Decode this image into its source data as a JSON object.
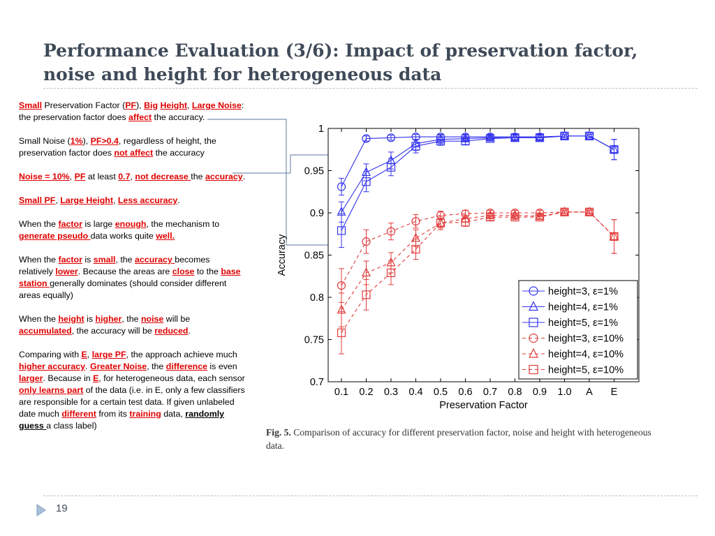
{
  "slide": {
    "title": "Performance Evaluation (3/6): Impact of preservation factor, noise and height for heterogeneous data",
    "page_number": "19",
    "caption_label": "Fig. 5.",
    "caption_text": " Comparison of accuracy for different preservation factor, noise and height with heterogeneous data."
  },
  "colors": {
    "title": "#3f4a58",
    "keyword": "#e00000",
    "blue_series": "#3333ee",
    "red_series": "#e23b3b"
  },
  "icons": {
    "bullet": "triangle-bullet-icon"
  },
  "text": [
    [
      {
        "t": "Small",
        "k": 1
      },
      {
        "t": " Preservation Factor ("
      },
      {
        "t": "PF",
        "k": 1
      },
      {
        "t": "), "
      },
      {
        "t": "Big",
        "k": 1
      },
      {
        "t": " "
      },
      {
        "t": "Height",
        "k": 1
      },
      {
        "t": ", "
      },
      {
        "t": "Large Noise",
        "k": 1
      },
      {
        "t": ": the preservation factor does "
      },
      {
        "t": "affect",
        "k": 1
      },
      {
        "t": " the accuracy."
      }
    ],
    [
      {
        "t": "Small Noise ("
      },
      {
        "t": "1%",
        "k": 1
      },
      {
        "t": "), "
      },
      {
        "t": "PF>0.4",
        "k": 1
      },
      {
        "t": ", regardless of height, the preservation factor does "
      },
      {
        "t": "not affect",
        "k": 1
      },
      {
        "t": " the accuracy"
      }
    ],
    [
      {
        "t": "Noise = 10%",
        "k": 1
      },
      {
        "t": ", "
      },
      {
        "t": "PF",
        "k": 1
      },
      {
        "t": " at least "
      },
      {
        "t": "0.7",
        "k": 1
      },
      {
        "t": ", "
      },
      {
        "t": "not decrease ",
        "k": 1
      },
      {
        "t": "the "
      },
      {
        "t": "accuracy",
        "k": 1
      },
      {
        "t": "."
      }
    ],
    [
      {
        "t": "Small PF",
        "k": 1
      },
      {
        "t": ", "
      },
      {
        "t": "Large Height",
        "k": 1
      },
      {
        "t": ", "
      },
      {
        "t": "Less accuracy",
        "k": 1
      },
      {
        "t": "."
      }
    ],
    [
      {
        "t": "When the "
      },
      {
        "t": "factor",
        "k": 1
      },
      {
        "t": " is large "
      },
      {
        "t": "enough",
        "k": 1
      },
      {
        "t": ", the mechanism to "
      },
      {
        "t": "generate pseudo ",
        "k": 1
      },
      {
        "t": "data works quite "
      },
      {
        "t": "well.",
        "k": 1
      }
    ],
    [
      {
        "t": "When the "
      },
      {
        "t": "factor",
        "k": 1
      },
      {
        "t": " is "
      },
      {
        "t": "small",
        "k": 1
      },
      {
        "t": ", the "
      },
      {
        "t": "accuracy ",
        "k": 1
      },
      {
        "t": "becomes relatively "
      },
      {
        "t": "lower",
        "k": 1
      },
      {
        "t": ". Because the areas are "
      },
      {
        "t": "close",
        "k": 1
      },
      {
        "t": " to the "
      },
      {
        "t": "base station ",
        "k": 1
      },
      {
        "t": "generally dominates (should consider different areas equally)"
      }
    ],
    [
      {
        "t": "When the "
      },
      {
        "t": "height",
        "k": 1
      },
      {
        "t": " is "
      },
      {
        "t": "higher",
        "k": 1
      },
      {
        "t": ", the "
      },
      {
        "t": "noise",
        "k": 1
      },
      {
        "t": " will be "
      },
      {
        "t": "accumulated",
        "k": 1
      },
      {
        "t": ", the accuracy will be "
      },
      {
        "t": "reduced",
        "k": 1
      },
      {
        "t": "."
      }
    ],
    [
      {
        "t": "Comparing with "
      },
      {
        "t": "E",
        "k": 1
      },
      {
        "t": ", "
      },
      {
        "t": "large PF",
        "k": 1
      },
      {
        "t": ", the approach achieve much "
      },
      {
        "t": "higher accuracy",
        "k": 1
      },
      {
        "t": ". "
      },
      {
        "t": "Greater Noise",
        "k": 1
      },
      {
        "t": ", the "
      },
      {
        "t": "difference",
        "k": 1
      },
      {
        "t": " is even "
      },
      {
        "t": "larger",
        "k": 1
      },
      {
        "t": ". Because in "
      },
      {
        "t": "E",
        "k": 1
      },
      {
        "t": ", for heterogeneous data, each sensor "
      },
      {
        "t": "only learns part",
        "k": 1
      },
      {
        "t": " of the data (i.e. in E, only a few classifiers are responsible for a certain test data. If given unlabeled date much "
      },
      {
        "t": "different",
        "k": 1
      },
      {
        "t": " from its "
      },
      {
        "t": "training",
        "k": 1
      },
      {
        "t": " data, "
      },
      {
        "t": "randomly guess ",
        "k": 2
      },
      {
        "t": "a class label)"
      }
    ]
  ],
  "chart_data": {
    "type": "line",
    "xlabel": "Preservation Factor",
    "ylabel": "Accuracy",
    "categories": [
      "0.1",
      "0.2",
      "0.3",
      "0.4",
      "0.5",
      "0.6",
      "0.7",
      "0.8",
      "0.9",
      "1.0",
      "A",
      "E"
    ],
    "ylim": [
      0.7,
      1.0
    ],
    "yticks": [
      "1",
      "0.95",
      "0.9",
      "0.85",
      "0.8",
      "0.75",
      "0.7"
    ],
    "ytick_values": [
      1.0,
      0.95,
      0.9,
      0.85,
      0.8,
      0.75,
      0.7
    ],
    "grid": false,
    "legend_position": "bottom-right",
    "series": [
      {
        "name": "height=3, ε=1%",
        "color": "#3333ee",
        "dash": "solid",
        "marker": "circle",
        "values": [
          0.931,
          0.988,
          0.989,
          0.99,
          0.99,
          0.99,
          0.99,
          0.99,
          0.99,
          0.991,
          0.991,
          0.975
        ],
        "err": [
          0.01,
          0.003,
          0.003,
          0.003,
          0.003,
          0.003,
          0.003,
          0.003,
          0.003,
          0.002,
          0.002,
          0.012
        ]
      },
      {
        "name": "height=4, ε=1%",
        "color": "#3333ee",
        "dash": "solid",
        "marker": "triangle",
        "values": [
          0.901,
          0.948,
          0.962,
          0.982,
          0.987,
          0.988,
          0.989,
          0.989,
          0.989,
          0.991,
          0.991,
          0.975
        ],
        "err": [
          0.012,
          0.01,
          0.01,
          0.008,
          0.005,
          0.004,
          0.003,
          0.003,
          0.003,
          0.002,
          0.002,
          0.012
        ]
      },
      {
        "name": "height=5, ε=1%",
        "color": "#3333ee",
        "dash": "solid",
        "marker": "square",
        "values": [
          0.879,
          0.937,
          0.954,
          0.979,
          0.985,
          0.985,
          0.988,
          0.989,
          0.989,
          0.991,
          0.991,
          0.975
        ],
        "err": [
          0.02,
          0.012,
          0.01,
          0.008,
          0.005,
          0.004,
          0.003,
          0.003,
          0.003,
          0.002,
          0.002,
          0.012
        ]
      },
      {
        "name": "height=3, ε=10%",
        "color": "#e23b3b",
        "dash": "dashed",
        "marker": "circle",
        "values": [
          0.814,
          0.866,
          0.878,
          0.89,
          0.897,
          0.899,
          0.9,
          0.9,
          0.9,
          0.901,
          0.901,
          0.872
        ],
        "err": [
          0.02,
          0.014,
          0.01,
          0.008,
          0.005,
          0.004,
          0.003,
          0.003,
          0.003,
          0.002,
          0.002,
          0.02
        ]
      },
      {
        "name": "height=4, ε=10%",
        "color": "#e23b3b",
        "dash": "dashed",
        "marker": "triangle",
        "values": [
          0.785,
          0.829,
          0.841,
          0.87,
          0.888,
          0.893,
          0.897,
          0.897,
          0.896,
          0.901,
          0.901,
          0.872
        ],
        "err": [
          0.02,
          0.014,
          0.012,
          0.01,
          0.006,
          0.004,
          0.003,
          0.003,
          0.003,
          0.002,
          0.002,
          0.02
        ]
      },
      {
        "name": "height=5, ε=10%",
        "color": "#e23b3b",
        "dash": "dashed",
        "marker": "square",
        "values": [
          0.758,
          0.803,
          0.829,
          0.857,
          0.888,
          0.889,
          0.895,
          0.895,
          0.895,
          0.901,
          0.901,
          0.872
        ],
        "err": [
          0.025,
          0.018,
          0.014,
          0.012,
          0.008,
          0.005,
          0.004,
          0.003,
          0.003,
          0.002,
          0.002,
          0.02
        ]
      }
    ]
  }
}
